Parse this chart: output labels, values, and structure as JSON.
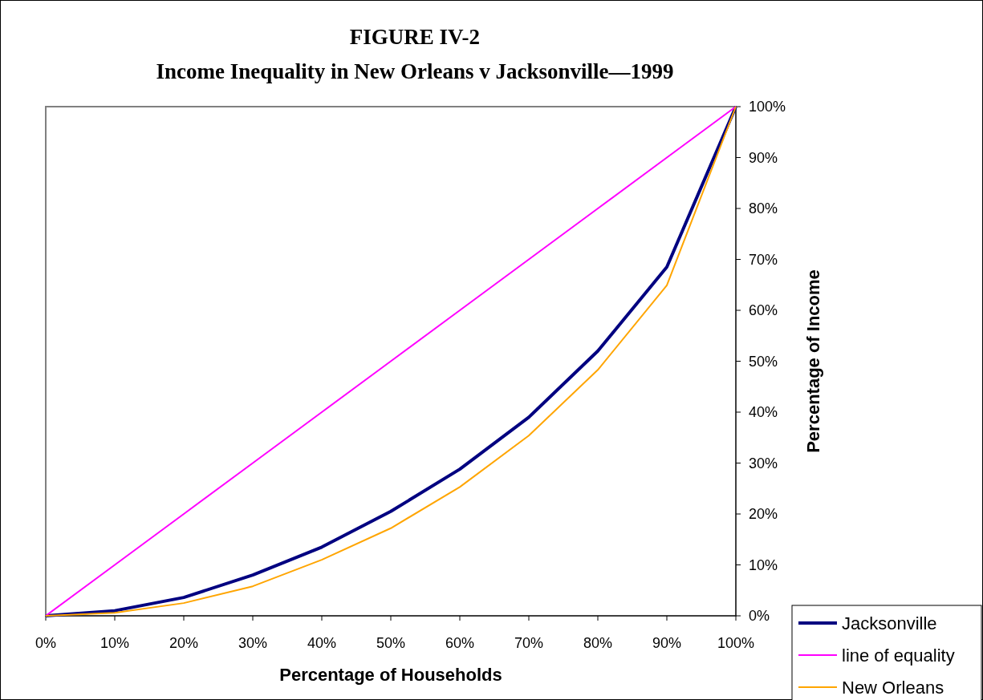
{
  "chart_data": {
    "type": "line",
    "title": "FIGURE IV-2",
    "subtitle": "Income Inequality in New Orleans v Jacksonville—1999",
    "xlabel": "Percentage of Households",
    "ylabel": "Percentage of Income",
    "x": [
      0,
      10,
      20,
      30,
      40,
      50,
      60,
      70,
      80,
      90,
      100
    ],
    "series": [
      {
        "name": "Jacksonville",
        "color": "#000080",
        "values": [
          0,
          1,
          3.6,
          8,
          13.5,
          20.5,
          28.8,
          39,
          52,
          68.5,
          100
        ]
      },
      {
        "name": "line of equality",
        "color": "#ff00ff",
        "values": [
          0,
          10,
          20,
          30,
          40,
          50,
          60,
          70,
          80,
          90,
          100
        ]
      },
      {
        "name": "New Orleans",
        "color": "#ffa500",
        "values": [
          0,
          0.6,
          2.5,
          5.8,
          11,
          17.2,
          25.3,
          35.4,
          48.3,
          64.9,
          100
        ]
      }
    ],
    "xlim": [
      0,
      100
    ],
    "ylim": [
      0,
      100
    ],
    "xticks": [
      {
        "value": 0,
        "label": "0%"
      },
      {
        "value": 10,
        "label": "10%"
      },
      {
        "value": 20,
        "label": "20%"
      },
      {
        "value": 30,
        "label": "30%"
      },
      {
        "value": 40,
        "label": "40%"
      },
      {
        "value": 50,
        "label": "50%"
      },
      {
        "value": 60,
        "label": "60%"
      },
      {
        "value": 70,
        "label": "70%"
      },
      {
        "value": 80,
        "label": "80%"
      },
      {
        "value": 90,
        "label": "90%"
      },
      {
        "value": 100,
        "label": "100%"
      }
    ],
    "yticks": [
      {
        "value": 0,
        "label": "0%"
      },
      {
        "value": 10,
        "label": "10%"
      },
      {
        "value": 20,
        "label": "20%"
      },
      {
        "value": 30,
        "label": "30%"
      },
      {
        "value": 40,
        "label": "40%"
      },
      {
        "value": 50,
        "label": "50%"
      },
      {
        "value": 60,
        "label": "60%"
      },
      {
        "value": 70,
        "label": "70%"
      },
      {
        "value": 80,
        "label": "80%"
      },
      {
        "value": 90,
        "label": "90%"
      },
      {
        "value": 100,
        "label": "100%"
      }
    ],
    "grid": false,
    "legend": "bottom right",
    "marker": "none",
    "line_style": "solid"
  }
}
